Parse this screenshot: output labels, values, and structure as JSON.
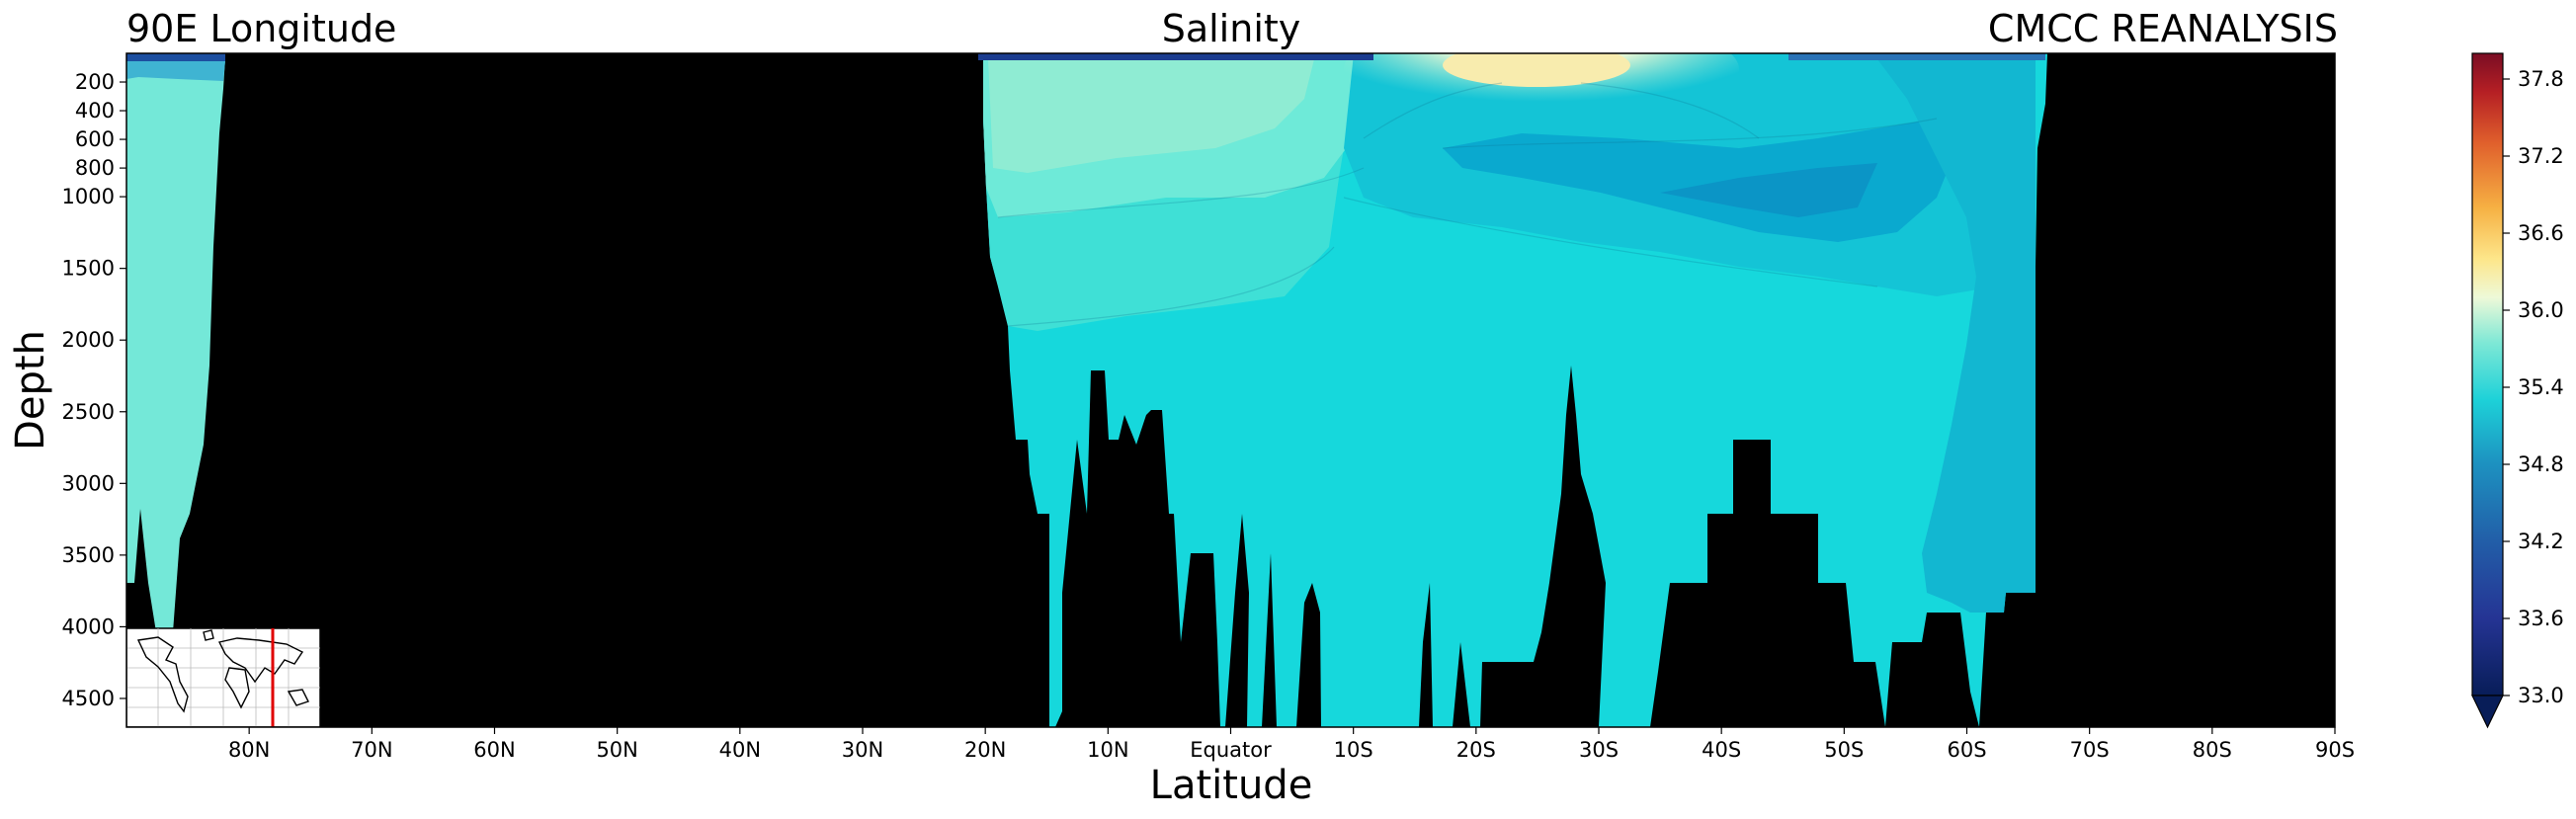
{
  "chart_data": {
    "type": "contour",
    "title_left": "90E Longitude",
    "title_center": "Salinity",
    "title_right": "CMCC REANALYSIS",
    "xlabel": "Latitude",
    "ylabel": "Depth",
    "x_ticks": [
      {
        "value": 80,
        "label": "80N"
      },
      {
        "value": 70,
        "label": "70N"
      },
      {
        "value": 60,
        "label": "60N"
      },
      {
        "value": 50,
        "label": "50N"
      },
      {
        "value": 40,
        "label": "40N"
      },
      {
        "value": 30,
        "label": "30N"
      },
      {
        "value": 20,
        "label": "20N"
      },
      {
        "value": 10,
        "label": "10N"
      },
      {
        "value": 0,
        "label": "Equator"
      },
      {
        "value": -10,
        "label": "10S"
      },
      {
        "value": -20,
        "label": "20S"
      },
      {
        "value": -30,
        "label": "30S"
      },
      {
        "value": -40,
        "label": "40S"
      },
      {
        "value": -50,
        "label": "50S"
      },
      {
        "value": -60,
        "label": "60S"
      },
      {
        "value": -70,
        "label": "70S"
      },
      {
        "value": -80,
        "label": "80S"
      },
      {
        "value": -90,
        "label": "90S"
      }
    ],
    "y_ticks": [
      {
        "value": 200,
        "label": "200"
      },
      {
        "value": 400,
        "label": "400"
      },
      {
        "value": 600,
        "label": "600"
      },
      {
        "value": 800,
        "label": "800"
      },
      {
        "value": 1000,
        "label": "1000"
      },
      {
        "value": 1500,
        "label": "1500"
      },
      {
        "value": 2000,
        "label": "2000"
      },
      {
        "value": 2500,
        "label": "2500"
      },
      {
        "value": 3000,
        "label": "3000"
      },
      {
        "value": 3500,
        "label": "3500"
      },
      {
        "value": 4000,
        "label": "4000"
      },
      {
        "value": 4500,
        "label": "4500"
      }
    ],
    "xlim": [
      90,
      -90
    ],
    "ylim": [
      0,
      4700
    ],
    "colorbar": {
      "min": 33.0,
      "max": 38.0,
      "extend": "min",
      "ticks": [
        "33.0",
        "33.6",
        "34.2",
        "34.8",
        "35.4",
        "36.0",
        "36.6",
        "37.2",
        "37.8"
      ],
      "colormap": "YlGnBu_r + YlOrRd"
    },
    "land_color": "#000000",
    "inset": {
      "type": "world-map",
      "marker": "90E meridian",
      "marker_color": "#e00000"
    }
  }
}
